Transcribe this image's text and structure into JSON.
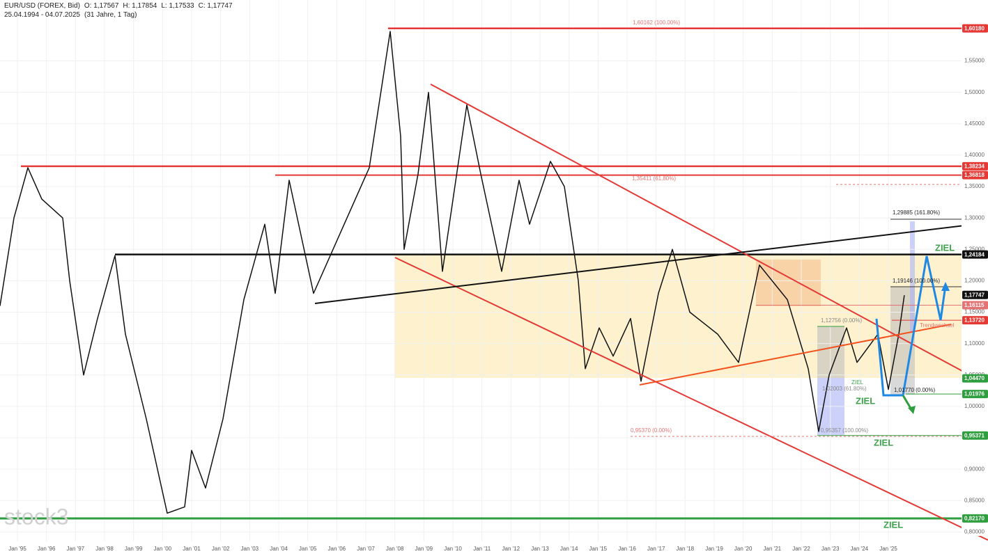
{
  "header": {
    "symbol": "EUR/USD (FOREX, Bid)",
    "ohlc": [
      "O: 1,17567",
      "H: 1,17854",
      "L: 1,17533",
      "C: 1,17747"
    ],
    "range": "25.04.1994 - 04.07.2025",
    "span": "(31 Jahre, 1 Tag)"
  },
  "watermark": "stock3",
  "chart_data": {
    "type": "line",
    "color": "#111111",
    "x": [
      1994.4,
      1994.88,
      1995.36,
      1995.84,
      1996.56,
      1996.8,
      1997.28,
      1997.76,
      1998.36,
      1998.72,
      1999.44,
      2000.16,
      2000.76,
      2001.0,
      2001.48,
      2002.08,
      2002.8,
      2003.52,
      2003.88,
      2004.36,
      2005.2,
      2006.16,
      2007.12,
      2007.84,
      2008.2,
      2008.32,
      2008.8,
      2009.16,
      2009.64,
      2010.48,
      2010.96,
      2011.68,
      2012.28,
      2012.64,
      2013.36,
      2013.84,
      2014.32,
      2014.56,
      2015.04,
      2015.52,
      2016.12,
      2016.48,
      2017.08,
      2017.56,
      2018.16,
      2019.12,
      2019.84,
      2020.56,
      2021.52,
      2022.24,
      2022.6,
      2022.96,
      2023.56,
      2023.92,
      2024.64,
      2025.0,
      2025.36,
      2025.55
    ],
    "values": [
      1.16,
      1.3,
      1.38,
      1.33,
      1.3,
      1.2,
      1.05,
      1.14,
      1.24,
      1.115,
      0.98,
      0.83,
      0.84,
      0.93,
      0.87,
      0.98,
      1.17,
      1.29,
      1.18,
      1.36,
      1.18,
      1.28,
      1.38,
      1.597,
      1.43,
      1.25,
      1.37,
      1.5,
      1.215,
      1.48,
      1.37,
      1.215,
      1.36,
      1.29,
      1.39,
      1.35,
      1.2,
      1.06,
      1.125,
      1.08,
      1.14,
      1.04,
      1.18,
      1.25,
      1.15,
      1.115,
      1.07,
      1.225,
      1.17,
      1.06,
      0.96,
      1.05,
      1.125,
      1.07,
      1.115,
      1.027,
      1.115,
      1.177
    ],
    "xlim": [
      1994.4,
      2027.52
    ],
    "ylim": [
      0.765,
      1.647
    ],
    "grid": true,
    "xticks": [
      {
        "value": 1995,
        "label": "Jan '95"
      },
      {
        "value": 1996,
        "label": "Jan '96"
      },
      {
        "value": 1997,
        "label": "Jan '97"
      },
      {
        "value": 1998,
        "label": "Jan '98"
      },
      {
        "value": 1999,
        "label": "Jan '99"
      },
      {
        "value": 2000,
        "label": "Jan '00"
      },
      {
        "value": 2001,
        "label": "Jan '01"
      },
      {
        "value": 2002,
        "label": "Jan '02"
      },
      {
        "value": 2003,
        "label": "Jan '03"
      },
      {
        "value": 2004,
        "label": "Jan '04"
      },
      {
        "value": 2005,
        "label": "Jan '05"
      },
      {
        "value": 2006,
        "label": "Jan '06"
      },
      {
        "value": 2007,
        "label": "Jan '07"
      },
      {
        "value": 2008,
        "label": "Jan '08"
      },
      {
        "value": 2009,
        "label": "Jan '09"
      },
      {
        "value": 2010,
        "label": "Jan '10"
      },
      {
        "value": 2011,
        "label": "Jan '11"
      },
      {
        "value": 2012,
        "label": "Jan '12"
      },
      {
        "value": 2013,
        "label": "Jan '13"
      },
      {
        "value": 2014,
        "label": "Jan '14"
      },
      {
        "value": 2015,
        "label": "Jan '15"
      },
      {
        "value": 2016,
        "label": "Jan '16"
      },
      {
        "value": 2017,
        "label": "Jan '17"
      },
      {
        "value": 2018,
        "label": "Jan '18"
      },
      {
        "value": 2019,
        "label": "Jan '19"
      },
      {
        "value": 2020,
        "label": "Jan '20"
      },
      {
        "value": 2021,
        "label": "Jan '21"
      },
      {
        "value": 2022,
        "label": "Jan '22"
      },
      {
        "value": 2023,
        "label": "Jan '23"
      },
      {
        "value": 2024,
        "label": "Jan '24"
      },
      {
        "value": 2025,
        "label": "Jan '25"
      }
    ],
    "yticks": [
      {
        "value": 0.8,
        "label": "0,80000"
      },
      {
        "value": 0.85,
        "label": "0,85000"
      },
      {
        "value": 0.9,
        "label": "0,90000"
      },
      {
        "value": 0.95,
        "label": "0,95000"
      },
      {
        "value": 1.0,
        "label": "1,00000"
      },
      {
        "value": 1.05,
        "label": "1,05000"
      },
      {
        "value": 1.1,
        "label": "1,10000"
      },
      {
        "value": 1.15,
        "label": "1,15000"
      },
      {
        "value": 1.2,
        "label": "1,20000"
      },
      {
        "value": 1.25,
        "label": "1,25000"
      },
      {
        "value": 1.3,
        "label": "1,30000"
      },
      {
        "value": 1.35,
        "label": "1,35000"
      },
      {
        "value": 1.4,
        "label": "1,40000"
      },
      {
        "value": 1.45,
        "label": "1,45000"
      },
      {
        "value": 1.5,
        "label": "1,50000"
      },
      {
        "value": 1.55,
        "label": "1,55000"
      }
    ],
    "levels": [
      {
        "value": 1.6018,
        "label": "1,60180",
        "color": "#e53935"
      },
      {
        "value": 1.38234,
        "label": "1,38234",
        "color": "#e53935"
      },
      {
        "value": 1.36818,
        "label": "1,36818",
        "color": "#e53935"
      },
      {
        "value": 1.24184,
        "label": "1,24184",
        "color": "#111111"
      },
      {
        "value": 1.17747,
        "label": "1,17747",
        "color": "#111111"
      },
      {
        "value": 1.16115,
        "label": "1,16115",
        "color": "#e57373"
      },
      {
        "value": 1.1372,
        "label": "1,13720",
        "color": "#e53935"
      },
      {
        "value": 1.0447,
        "label": "1,04470",
        "color": "#2e9e3e"
      },
      {
        "value": 1.01976,
        "label": "1,01976",
        "color": "#2e9e3e"
      },
      {
        "value": 0.95371,
        "label": "0,95371",
        "color": "#2e9e3e"
      },
      {
        "value": 0.8217,
        "label": "0,82170",
        "color": "#2e9e3e"
      }
    ],
    "annotations": [
      "1,60162 (100.00%)",
      "1,35411 (61.80%)",
      "0,95370 (0.00%)",
      "1,29885 (161.80%)",
      "1,19146 (100.00%)",
      "1,12756 (0.00%)",
      "1,02003 (61.80%)",
      "0,95357 (100.00%)",
      "1,01770 (0.00%)",
      "Trendwechsel",
      "ZIEL",
      "ZIEL",
      "ZIEL",
      "ZIEL",
      "ZIEL"
    ]
  }
}
